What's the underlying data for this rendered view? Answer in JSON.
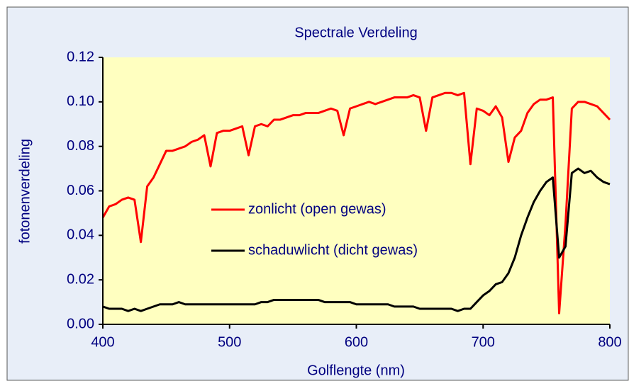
{
  "chart_data": {
    "type": "line",
    "title": "Spectrale Verdeling",
    "x_label": "Golflengte (nm)",
    "y_label": "fotonenverdeling",
    "x": [
      400,
      405,
      410,
      415,
      420,
      425,
      430,
      435,
      440,
      445,
      450,
      455,
      460,
      465,
      470,
      475,
      480,
      485,
      490,
      495,
      500,
      505,
      510,
      515,
      520,
      525,
      530,
      535,
      540,
      545,
      550,
      555,
      560,
      565,
      570,
      575,
      580,
      585,
      590,
      595,
      600,
      605,
      610,
      615,
      620,
      625,
      630,
      635,
      640,
      645,
      650,
      655,
      660,
      665,
      670,
      675,
      680,
      685,
      690,
      695,
      700,
      705,
      710,
      715,
      720,
      725,
      730,
      735,
      740,
      745,
      750,
      755,
      760,
      765,
      770,
      775,
      780,
      785,
      790,
      795,
      800
    ],
    "series": [
      {
        "name": "zonlicht (open gewas)",
        "color": "#ff0000",
        "values": [
          0.048,
          0.053,
          0.054,
          0.056,
          0.057,
          0.056,
          0.037,
          0.062,
          0.066,
          0.072,
          0.078,
          0.078,
          0.079,
          0.08,
          0.082,
          0.083,
          0.085,
          0.071,
          0.086,
          0.087,
          0.087,
          0.088,
          0.089,
          0.076,
          0.089,
          0.09,
          0.089,
          0.092,
          0.092,
          0.093,
          0.094,
          0.094,
          0.095,
          0.095,
          0.095,
          0.096,
          0.097,
          0.096,
          0.085,
          0.097,
          0.098,
          0.099,
          0.1,
          0.099,
          0.1,
          0.101,
          0.102,
          0.102,
          0.102,
          0.103,
          0.102,
          0.087,
          0.102,
          0.103,
          0.104,
          0.104,
          0.103,
          0.104,
          0.072,
          0.097,
          0.096,
          0.094,
          0.098,
          0.093,
          0.073,
          0.084,
          0.087,
          0.095,
          0.099,
          0.101,
          0.101,
          0.102,
          0.005,
          0.045,
          0.097,
          0.1,
          0.1,
          0.099,
          0.098,
          0.095,
          0.092
        ]
      },
      {
        "name": "schaduwlicht (dicht gewas)",
        "color": "#000000",
        "values": [
          0.008,
          0.007,
          0.007,
          0.007,
          0.006,
          0.007,
          0.006,
          0.007,
          0.008,
          0.009,
          0.009,
          0.009,
          0.01,
          0.009,
          0.009,
          0.009,
          0.009,
          0.009,
          0.009,
          0.009,
          0.009,
          0.009,
          0.009,
          0.009,
          0.009,
          0.01,
          0.01,
          0.011,
          0.011,
          0.011,
          0.011,
          0.011,
          0.011,
          0.011,
          0.011,
          0.01,
          0.01,
          0.01,
          0.01,
          0.01,
          0.009,
          0.009,
          0.009,
          0.009,
          0.009,
          0.009,
          0.008,
          0.008,
          0.008,
          0.008,
          0.007,
          0.007,
          0.007,
          0.007,
          0.007,
          0.007,
          0.006,
          0.007,
          0.007,
          0.01,
          0.013,
          0.015,
          0.018,
          0.019,
          0.023,
          0.03,
          0.04,
          0.048,
          0.055,
          0.06,
          0.064,
          0.066,
          0.03,
          0.035,
          0.068,
          0.07,
          0.068,
          0.069,
          0.066,
          0.064,
          0.063
        ]
      }
    ],
    "xlim": [
      400,
      800
    ],
    "xticks": [
      400,
      500,
      600,
      700,
      800
    ],
    "ylim": [
      0,
      0.12
    ],
    "yticks": [
      {
        "value": 0,
        "label": "0.00"
      },
      0.02,
      0.04,
      0.06,
      0.08,
      {
        "value": 0.1,
        "label": "0.10"
      },
      0.12
    ],
    "grid": false,
    "legend": "center"
  }
}
